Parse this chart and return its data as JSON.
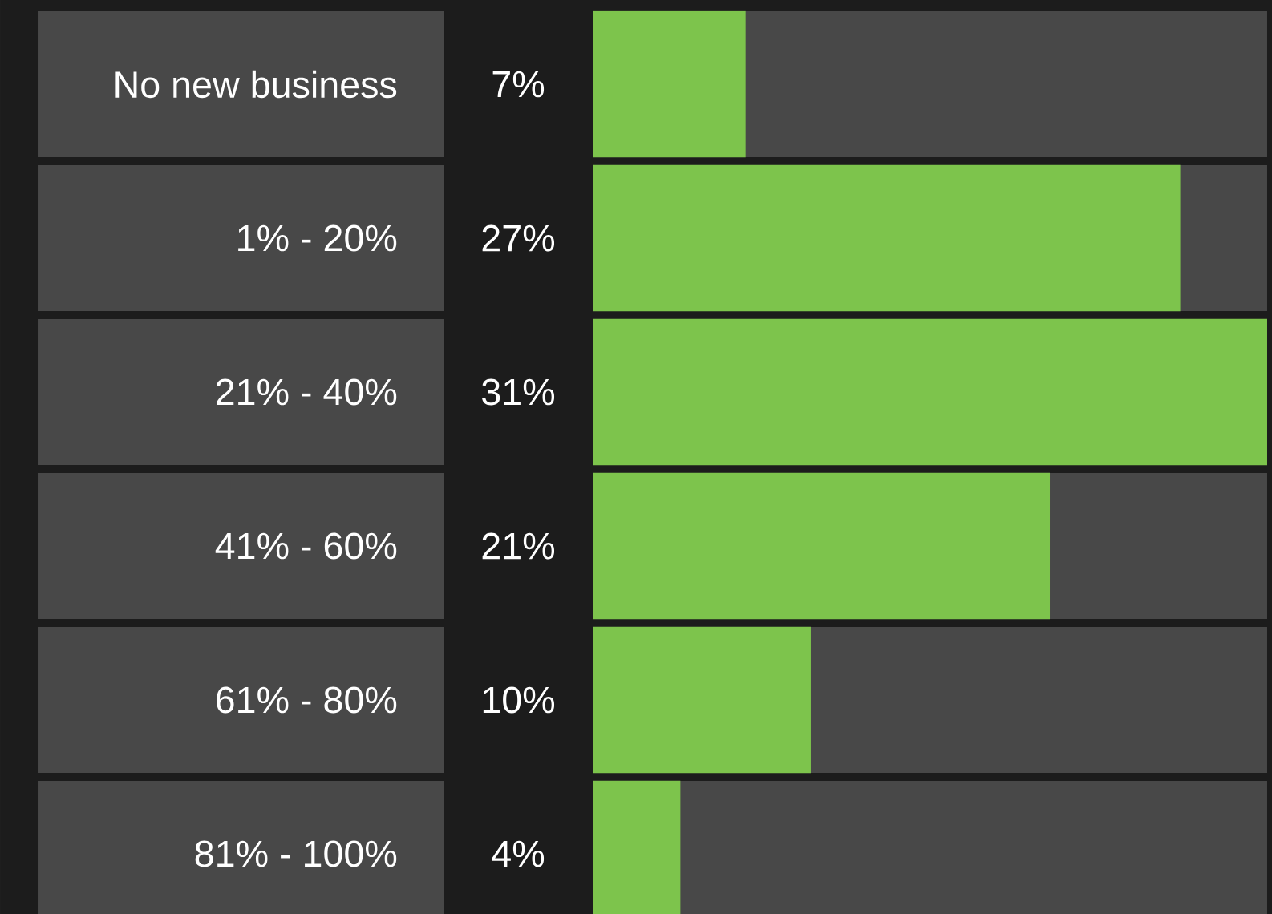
{
  "chart_data": {
    "type": "bar",
    "orientation": "horizontal",
    "categories": [
      "No new business",
      "1% - 20%",
      "21% - 40%",
      "41% - 60%",
      "61% - 80%",
      "81% - 100%"
    ],
    "values": [
      7,
      27,
      31,
      21,
      10,
      4
    ],
    "value_labels": [
      "7%",
      "27%",
      "31%",
      "21%",
      "10%",
      "4%"
    ],
    "color": "#7dc44c"
  }
}
